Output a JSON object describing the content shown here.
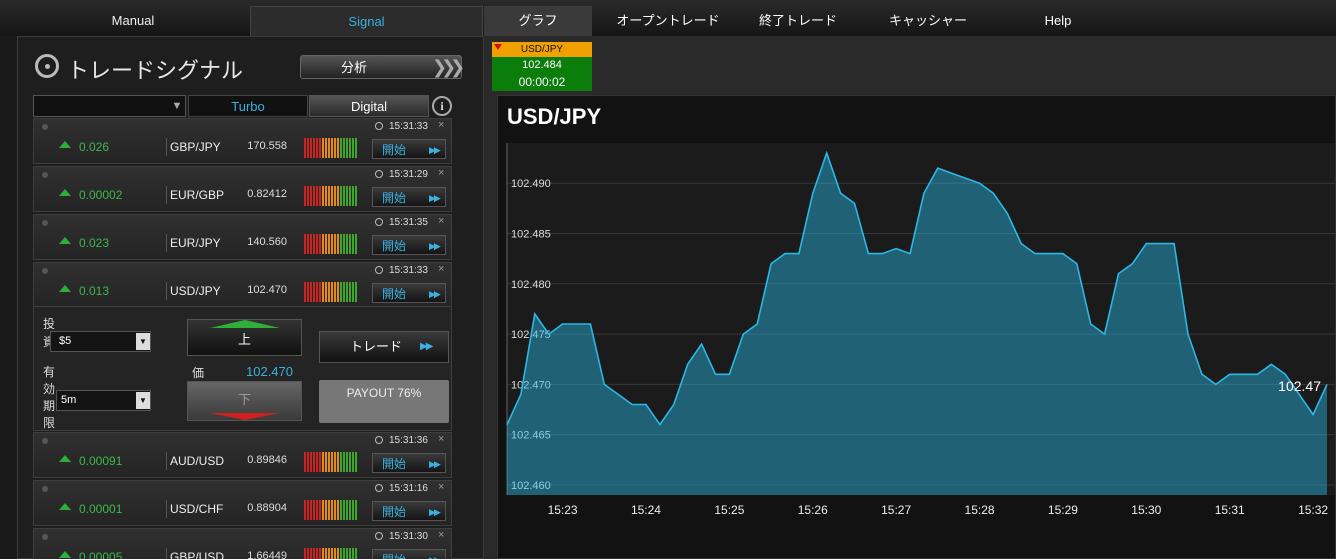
{
  "nav": {
    "left_tabs": [
      "Manual",
      "Signal"
    ],
    "right_tabs": [
      "グラフ",
      "オープントレード",
      "終了トレード",
      "キャッシャー",
      "Help"
    ]
  },
  "signal_panel": {
    "title": "トレードシグナル",
    "analyze": "分析",
    "filters": [
      "Turbo",
      "Digital"
    ],
    "start_label": "開始",
    "signals": [
      {
        "change": "0.026",
        "pair": "GBP/JPY",
        "price": "170.558",
        "time": "15:31:33"
      },
      {
        "change": "0.00002",
        "pair": "EUR/GBP",
        "price": "0.82412",
        "time": "15:31:29"
      },
      {
        "change": "0.023",
        "pair": "EUR/JPY",
        "price": "140.560",
        "time": "15:31:35"
      },
      {
        "change": "0.013",
        "pair": "USD/JPY",
        "price": "102.470",
        "time": "15:31:33"
      },
      {
        "change": "0.00091",
        "pair": "AUD/USD",
        "price": "0.89846",
        "time": "15:31:36"
      },
      {
        "change": "0.00001",
        "pair": "USD/CHF",
        "price": "0.88904",
        "time": "15:31:16"
      },
      {
        "change": "0.00005",
        "pair": "GBP/USD",
        "price": "1.66449",
        "time": "15:31:30"
      }
    ],
    "trade_form": {
      "invest_label": "投資",
      "invest_value": "$5",
      "expiry_label": "有効期限",
      "expiry_value": "5m",
      "up": "上",
      "price_label": "価",
      "price": "102.470",
      "down": "下",
      "trade_button": "トレード",
      "payout": "PAYOUT 76%"
    }
  },
  "ticker": {
    "pair": "USD/JPY",
    "price": "102.484",
    "countdown": "00:00:02"
  },
  "chart_data": {
    "type": "area",
    "title": "USD/JPY",
    "color": "#2bb8e6",
    "grid": true,
    "categories": [
      null,
      null,
      null,
      null,
      "15:23",
      null,
      null,
      null,
      null,
      null,
      "15:24",
      null,
      null,
      null,
      null,
      null,
      "15:25",
      null,
      null,
      null,
      null,
      null,
      "15:26",
      null,
      null,
      null,
      null,
      null,
      "15:27",
      null,
      null,
      null,
      null,
      null,
      "15:28",
      null,
      null,
      null,
      null,
      null,
      "15:29",
      null,
      null,
      null,
      null,
      null,
      "15:30",
      null,
      null,
      null,
      null,
      null,
      "15:31",
      null,
      null,
      null,
      null,
      null,
      "15:32",
      null
    ],
    "values": [
      102.466,
      102.469,
      102.477,
      102.475,
      102.476,
      102.476,
      102.476,
      102.47,
      102.469,
      102.468,
      102.468,
      102.466,
      102.468,
      102.472,
      102.474,
      102.471,
      102.471,
      102.475,
      102.476,
      102.482,
      102.483,
      102.483,
      102.489,
      102.493,
      102.489,
      102.488,
      102.483,
      102.483,
      102.4835,
      102.483,
      102.489,
      102.4915,
      102.491,
      102.4905,
      102.49,
      102.489,
      102.487,
      102.484,
      102.483,
      102.483,
      102.483,
      102.482,
      102.476,
      102.475,
      102.481,
      102.482,
      102.484,
      102.484,
      102.484,
      102.475,
      102.471,
      102.47,
      102.471,
      102.471,
      102.471,
      102.472,
      102.471,
      102.469,
      102.467,
      102.47
    ],
    "ylim": [
      102.459,
      102.494
    ],
    "yticks": [
      {
        "value": 102.46,
        "label": "102.460"
      },
      102.465,
      {
        "value": 102.47,
        "label": "102.470"
      },
      102.475,
      {
        "value": 102.48,
        "label": "102.480"
      },
      102.485,
      {
        "value": 102.49,
        "label": "102.490"
      }
    ],
    "last_label": "102.47"
  }
}
